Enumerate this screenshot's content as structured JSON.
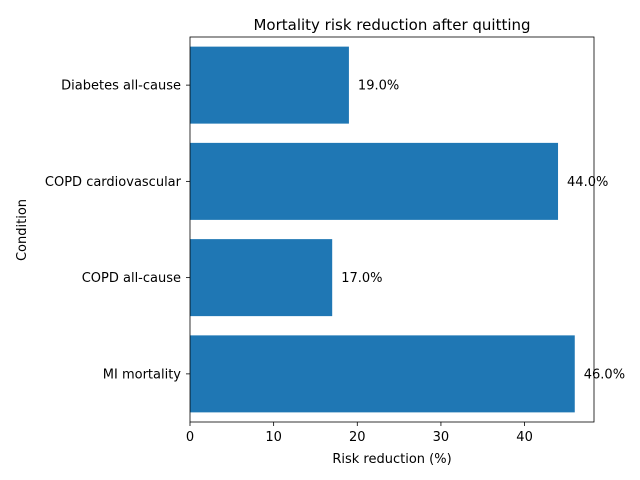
{
  "chart_data": {
    "type": "bar",
    "orientation": "horizontal",
    "title": "Mortality risk reduction after quitting",
    "xlabel": "Risk reduction (%)",
    "ylabel": "Condition",
    "categories": [
      "MI mortality",
      "COPD all-cause",
      "COPD cardiovascular",
      "Diabetes all-cause"
    ],
    "values": [
      46.0,
      17.0,
      44.0,
      19.0
    ],
    "value_labels": [
      "46.0%",
      "17.0%",
      "44.0%",
      "19.0%"
    ],
    "xlim": [
      0,
      48.3
    ],
    "xticks": [
      0,
      10,
      20,
      30,
      40
    ],
    "xtick_labels": [
      "0",
      "10",
      "20",
      "30",
      "40"
    ],
    "bar_color": "#1f77b4",
    "grid": false
  }
}
